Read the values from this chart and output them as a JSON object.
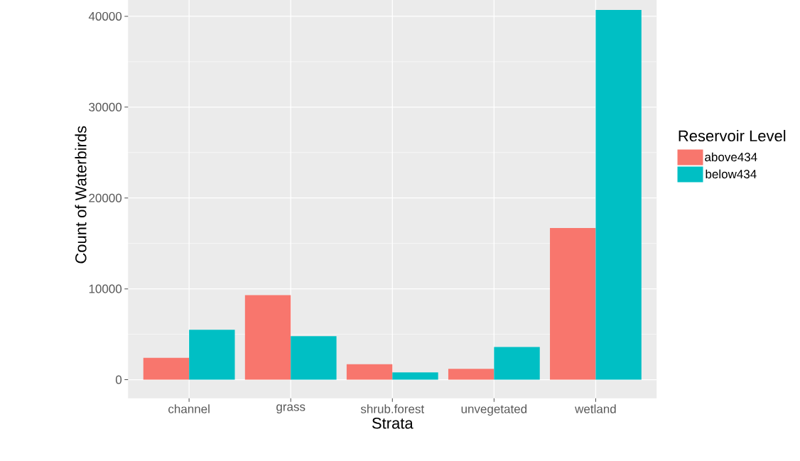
{
  "chart_data": {
    "type": "bar",
    "xlabel": "Strata",
    "ylabel": "Count of Waterbirds",
    "legend_title": "Reservoir Level",
    "categories": [
      "channel",
      "grass",
      "shrub.forest",
      "unvegetated",
      "wetland"
    ],
    "series": [
      {
        "name": "above434",
        "color": "#f8766d",
        "values": [
          2400,
          9300,
          1700,
          1200,
          16700
        ]
      },
      {
        "name": "below434",
        "color": "#00bfc4",
        "values": [
          5500,
          4800,
          800,
          3600,
          40700
        ]
      }
    ],
    "ylim": [
      -2050,
      42750
    ],
    "yticks": [
      0,
      10000,
      20000,
      30000,
      40000
    ],
    "grid": true,
    "legend": "right"
  }
}
